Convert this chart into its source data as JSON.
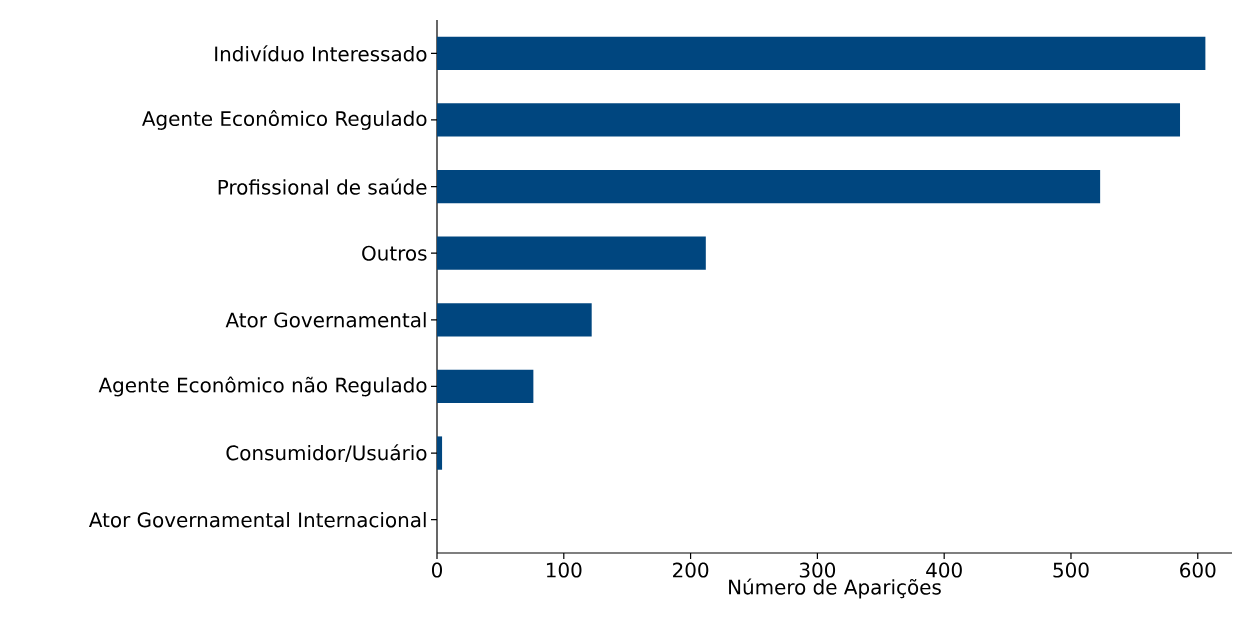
{
  "chart_data": {
    "type": "bar",
    "orientation": "horizontal",
    "xlabel": "Número de Aparições",
    "categories": [
      "Indivíduo Interessado",
      "Agente Econômico Regulado",
      "Profissional de saúde",
      "Outros",
      "Ator Governamental",
      "Agente Econômico não Regulado",
      "Consumidor/Usuário",
      "Ator Governamental Internacional"
    ],
    "values": [
      606,
      586,
      523,
      212,
      122,
      76,
      4,
      0
    ],
    "color": "#00467f",
    "xlim": [
      0,
      627
    ],
    "xticks": [
      0,
      100,
      200,
      300,
      400,
      500,
      600
    ],
    "grid": false
  }
}
